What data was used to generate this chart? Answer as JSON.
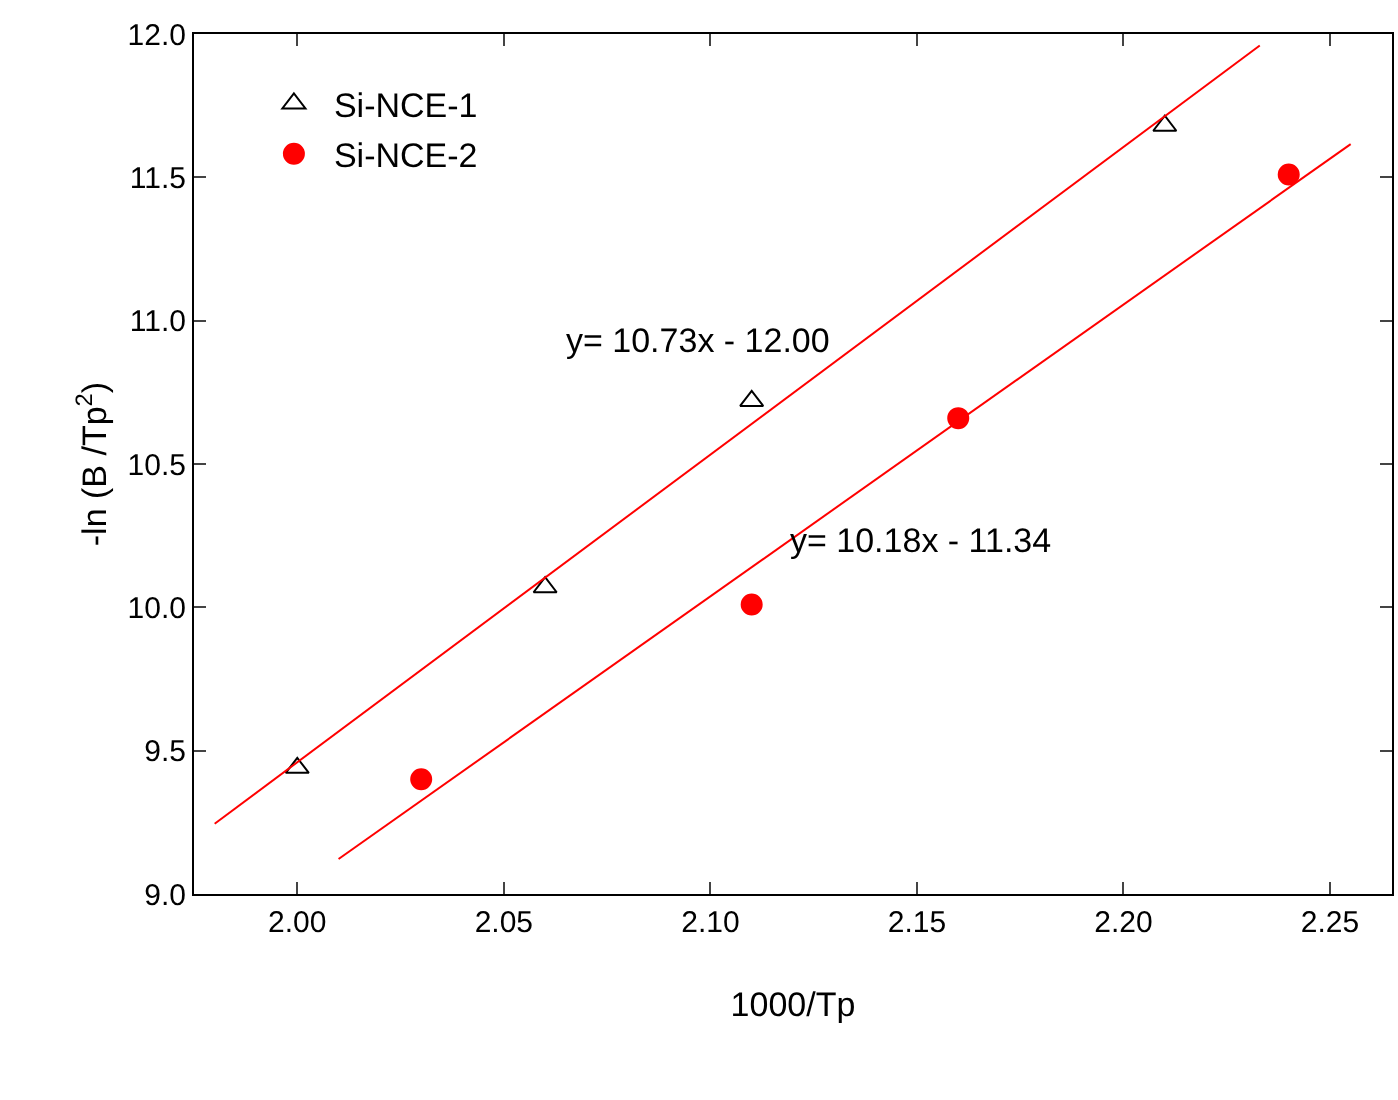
{
  "chart_data": {
    "type": "scatter",
    "xlabel": "1000/Tp",
    "ylabel": "-ln (B /Tp$^{2}$)",
    "xlim": [
      1.975,
      2.265
    ],
    "ylim": [
      9.0,
      12.0
    ],
    "xticks": [
      {
        "value": 2.0,
        "label": "2.00"
      },
      {
        "value": 2.05,
        "label": "2.05"
      },
      {
        "value": 2.1,
        "label": "2.10"
      },
      {
        "value": 2.15,
        "label": "2.15"
      },
      {
        "value": 2.2,
        "label": "2.20"
      },
      {
        "value": 2.25,
        "label": "2.25"
      }
    ],
    "yticks": [
      {
        "value": 9.0,
        "label": "9.0"
      },
      {
        "value": 9.5,
        "label": "9.5"
      },
      {
        "value": 10.0,
        "label": "10.0"
      },
      {
        "value": 10.5,
        "label": "10.5"
      },
      {
        "value": 11.0,
        "label": "11.0"
      },
      {
        "value": 11.5,
        "label": "11.5"
      },
      {
        "value": 12.0,
        "label": "12.0"
      }
    ],
    "grid": false,
    "legend": "top left",
    "series": [
      {
        "name": "Si-NCE-1",
        "marker": "triangle",
        "color": "#000000",
        "x": [
          2.0,
          2.06,
          2.11,
          2.21
        ],
        "values": [
          9.44,
          10.07,
          10.72,
          11.68
        ]
      },
      {
        "name": "Si-NCE-2",
        "marker": "circle",
        "color": "#ff0000",
        "x": [
          2.03,
          2.11,
          2.16,
          2.24
        ],
        "values": [
          9.4,
          10.01,
          10.66,
          11.51
        ]
      },
      {
        "type": "line",
        "marker": "none",
        "color": "#ff0000",
        "x": [
          1.98,
          2.233
        ],
        "values": [
          9.245,
          11.96
        ]
      },
      {
        "type": "line",
        "marker": "none",
        "color": "#ff0000",
        "x": [
          2.01,
          2.255
        ],
        "values": [
          9.122,
          11.616
        ]
      }
    ],
    "annotations": [
      "y= 10.73x - 12.00",
      "y= 10.18x - 11.34"
    ]
  }
}
